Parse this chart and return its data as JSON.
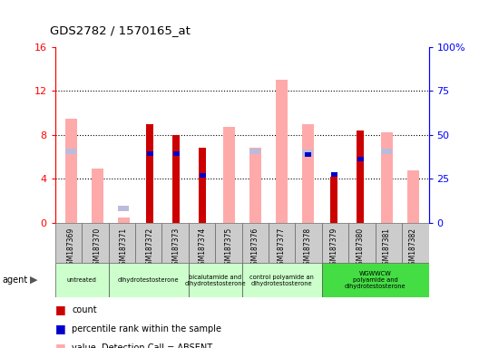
{
  "title": "GDS2782 / 1570165_at",
  "samples": [
    "GSM187369",
    "GSM187370",
    "GSM187371",
    "GSM187372",
    "GSM187373",
    "GSM187374",
    "GSM187375",
    "GSM187376",
    "GSM187377",
    "GSM187378",
    "GSM187379",
    "GSM187380",
    "GSM187381",
    "GSM187382"
  ],
  "count_values": [
    null,
    null,
    null,
    9.0,
    8.0,
    6.8,
    null,
    null,
    null,
    null,
    4.2,
    8.4,
    null,
    null
  ],
  "percentile_values": [
    null,
    null,
    null,
    6.3,
    6.3,
    4.3,
    null,
    null,
    null,
    6.2,
    4.4,
    5.8,
    null,
    null
  ],
  "absent_value_values": [
    9.5,
    4.9,
    0.5,
    null,
    null,
    null,
    8.7,
    6.8,
    13.0,
    9.0,
    null,
    null,
    8.2,
    4.8
  ],
  "absent_rank_values": [
    6.5,
    null,
    1.3,
    null,
    null,
    null,
    null,
    6.5,
    null,
    6.4,
    null,
    null,
    6.5,
    null
  ],
  "agent_groups": [
    {
      "label": "untreated",
      "start": 0,
      "end": 1
    },
    {
      "label": "dihydrotestosterone",
      "start": 2,
      "end": 4
    },
    {
      "label": "bicalutamide and\ndihydrotestosterone",
      "start": 5,
      "end": 6
    },
    {
      "label": "control polyamide an\ndihydrotestosterone",
      "start": 7,
      "end": 9
    },
    {
      "label": "WGWWCW\npolyamide and\ndihydrotestosterone",
      "start": 10,
      "end": 13
    }
  ],
  "agent_group_colors": [
    "#ccffcc",
    "#ccffcc",
    "#ccffcc",
    "#ccffcc",
    "#44dd44"
  ],
  "ylim_left": [
    0,
    16
  ],
  "ylim_right": [
    0,
    100
  ],
  "left_ticks": [
    0,
    4,
    8,
    12,
    16
  ],
  "right_ticks": [
    0,
    25,
    50,
    75,
    100
  ],
  "left_tick_labels": [
    "0",
    "4",
    "8",
    "12",
    "16"
  ],
  "right_tick_labels": [
    "0",
    "25",
    "50",
    "75",
    "100%"
  ],
  "color_count": "#cc0000",
  "color_percentile": "#0000cc",
  "color_absent_value": "#ffaaaa",
  "color_absent_rank": "#bbbbdd",
  "bg_color_sample_row": "#cccccc",
  "grid_color": "#333333",
  "border_color": "#888888"
}
